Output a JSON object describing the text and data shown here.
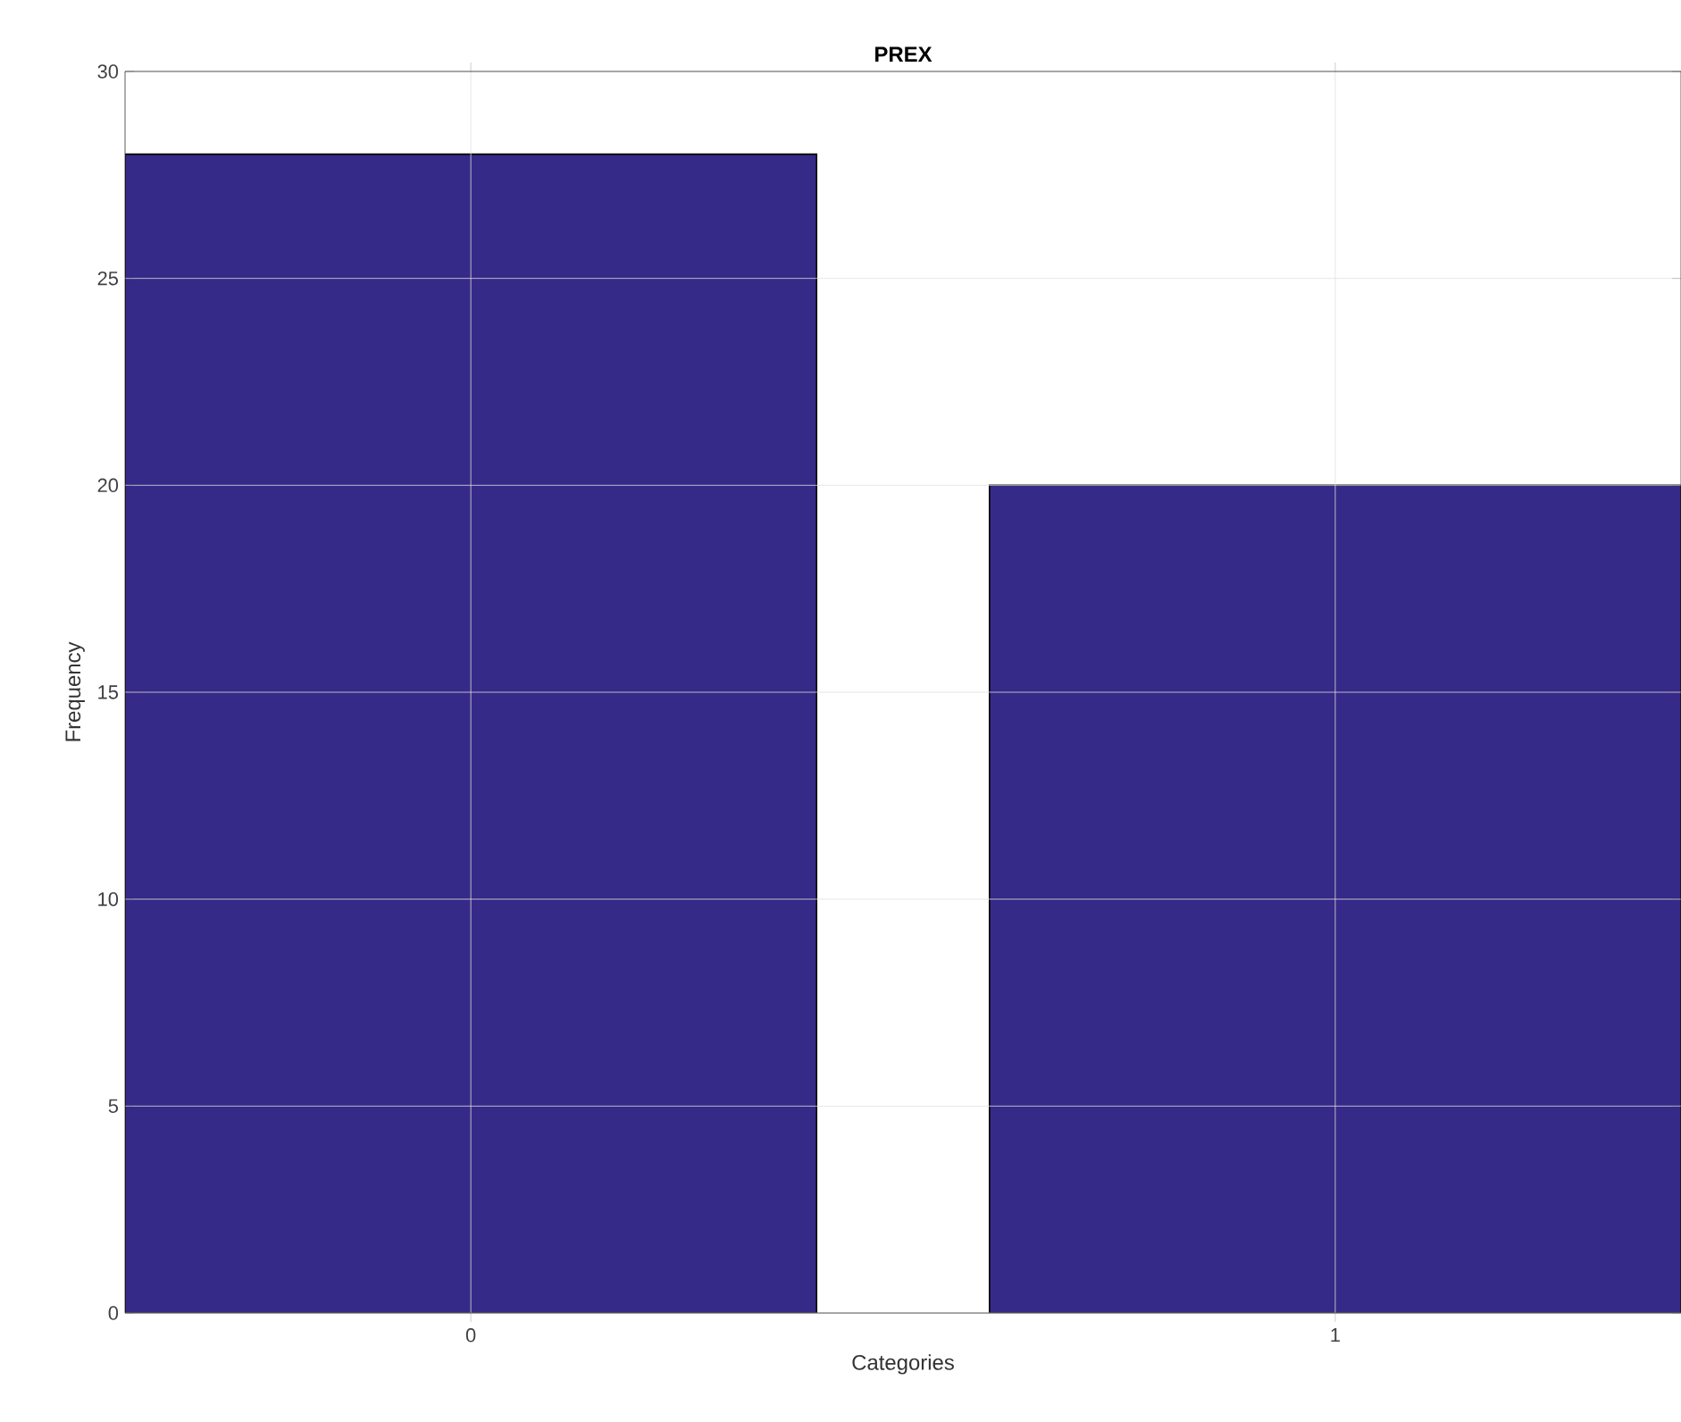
{
  "chart_data": {
    "type": "bar",
    "title": "PREX",
    "xlabel": "Categories",
    "ylabel": "Frequency",
    "categories": [
      "0",
      "1"
    ],
    "values": [
      28,
      20
    ],
    "color": "#352a87",
    "ylim": [
      0,
      30
    ],
    "yticks": [
      0,
      5,
      10,
      15,
      20,
      25,
      30
    ],
    "grid": true
  }
}
